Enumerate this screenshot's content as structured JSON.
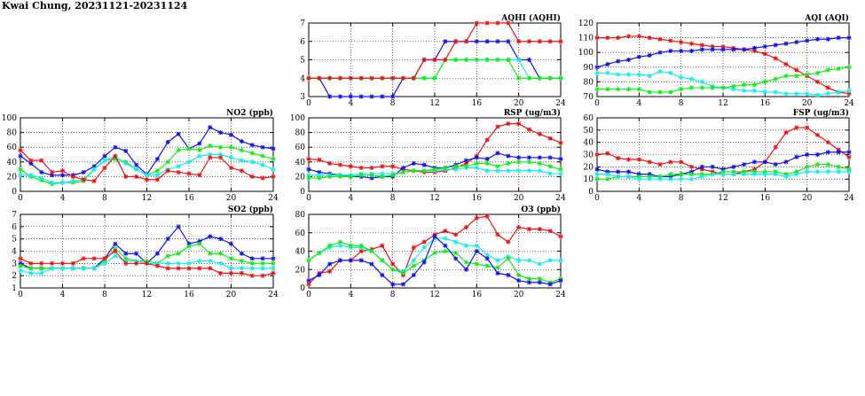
{
  "page": {
    "title": "Kwai Chung, 20231121-20231124"
  },
  "colors": {
    "red": "#ee1111",
    "blue": "#1111ee",
    "green": "#11ee11",
    "cyan": "#11eeee"
  },
  "chart_data": [
    {
      "id": "aqhi",
      "type": "line",
      "title": "AQHI (AQHI)",
      "x": [
        0,
        1,
        2,
        3,
        4,
        5,
        6,
        7,
        8,
        9,
        10,
        11,
        12,
        13,
        14,
        15,
        16,
        17,
        18,
        19,
        20,
        21,
        22,
        23,
        24
      ],
      "xlim": [
        0,
        24
      ],
      "xticks": [
        0,
        4,
        8,
        12,
        16,
        20,
        24
      ],
      "ylim": [
        3,
        7
      ],
      "yticks": [
        3,
        4,
        5,
        6,
        7
      ],
      "grid": true,
      "series": [
        {
          "color": "blue",
          "values": [
            4,
            4,
            3,
            3,
            3,
            3,
            3,
            3,
            3,
            4,
            4,
            5,
            5,
            6,
            6,
            6,
            6,
            6,
            6,
            6,
            5,
            5,
            4,
            4,
            4
          ]
        },
        {
          "color": "cyan",
          "values": [
            4,
            4,
            4,
            4,
            4,
            4,
            4,
            4,
            4,
            4,
            4,
            4,
            4,
            5,
            5,
            5,
            5,
            5,
            5,
            5,
            5,
            4,
            4,
            4,
            4
          ]
        },
        {
          "color": "green",
          "values": [
            4,
            4,
            4,
            4,
            4,
            4,
            4,
            4,
            4,
            4,
            4,
            4,
            4,
            5,
            5,
            5,
            5,
            5,
            5,
            5,
            4,
            4,
            4,
            4,
            4
          ]
        },
        {
          "color": "red",
          "values": [
            4,
            4,
            4,
            4,
            4,
            4,
            4,
            4,
            4,
            4,
            4,
            5,
            5,
            5,
            6,
            6,
            7,
            7,
            7,
            7,
            6,
            6,
            6,
            6,
            6
          ]
        }
      ]
    },
    {
      "id": "aqi",
      "type": "line",
      "title": "AQI (AQI)",
      "x": [
        0,
        1,
        2,
        3,
        4,
        5,
        6,
        7,
        8,
        9,
        10,
        11,
        12,
        13,
        14,
        15,
        16,
        17,
        18,
        19,
        20,
        21,
        22,
        23,
        24
      ],
      "xlim": [
        0,
        24
      ],
      "xticks": [
        0,
        4,
        8,
        12,
        16,
        20,
        24
      ],
      "ylim": [
        70,
        120
      ],
      "yticks": [
        70,
        80,
        90,
        100,
        110,
        120
      ],
      "grid": true,
      "series": [
        {
          "color": "red",
          "values": [
            110,
            110,
            110,
            111,
            111,
            110,
            109,
            108,
            107,
            106,
            105,
            104,
            104,
            103,
            102,
            101,
            99,
            96,
            92,
            88,
            84,
            80,
            76,
            73,
            72
          ]
        },
        {
          "color": "blue",
          "values": [
            90,
            92,
            94,
            95,
            97,
            98,
            100,
            101,
            101,
            101,
            102,
            102,
            102,
            102,
            102,
            103,
            104,
            105,
            106,
            107,
            108,
            109,
            109,
            110,
            110
          ]
        },
        {
          "color": "cyan",
          "values": [
            86,
            86,
            85,
            85,
            85,
            84,
            87,
            86,
            83,
            82,
            80,
            77,
            76,
            75,
            74,
            74,
            73,
            73,
            72,
            72,
            72,
            71,
            72,
            73,
            74
          ]
        },
        {
          "color": "green",
          "values": [
            75,
            75,
            75,
            75,
            75,
            73,
            73,
            73,
            75,
            76,
            76,
            76,
            76,
            77,
            78,
            78,
            80,
            82,
            84,
            84,
            85,
            86,
            88,
            89,
            90
          ]
        }
      ]
    },
    {
      "id": "no2",
      "type": "line",
      "title": "NO2 (ppb)",
      "x": [
        0,
        1,
        2,
        3,
        4,
        5,
        6,
        7,
        8,
        9,
        10,
        11,
        12,
        13,
        14,
        15,
        16,
        17,
        18,
        19,
        20,
        21,
        22,
        23,
        24
      ],
      "xlim": [
        0,
        24
      ],
      "xticks": [
        0,
        4,
        8,
        12,
        16,
        20,
        24
      ],
      "ylim": [
        0,
        100
      ],
      "yticks": [
        0,
        20,
        40,
        60,
        80,
        100
      ],
      "grid": true,
      "series": [
        {
          "color": "blue",
          "values": [
            48,
            38,
            26,
            22,
            22,
            22,
            26,
            34,
            48,
            60,
            55,
            36,
            23,
            44,
            67,
            78,
            58,
            65,
            87,
            80,
            77,
            68,
            63,
            60,
            58
          ]
        },
        {
          "color": "green",
          "values": [
            30,
            20,
            15,
            10,
            12,
            12,
            14,
            30,
            42,
            44,
            40,
            30,
            22,
            28,
            40,
            56,
            58,
            56,
            62,
            60,
            60,
            56,
            52,
            48,
            44
          ]
        },
        {
          "color": "cyan",
          "values": [
            22,
            22,
            18,
            12,
            12,
            14,
            16,
            30,
            42,
            48,
            38,
            30,
            22,
            22,
            30,
            34,
            40,
            48,
            50,
            50,
            46,
            42,
            40,
            36,
            30
          ]
        },
        {
          "color": "red",
          "values": [
            56,
            42,
            42,
            26,
            28,
            20,
            16,
            14,
            32,
            48,
            20,
            20,
            16,
            16,
            28,
            26,
            24,
            22,
            46,
            46,
            32,
            28,
            20,
            18,
            20
          ]
        }
      ]
    },
    {
      "id": "rsp",
      "type": "line",
      "title": "RSP (ug/m3)",
      "x": [
        0,
        1,
        2,
        3,
        4,
        5,
        6,
        7,
        8,
        9,
        10,
        11,
        12,
        13,
        14,
        15,
        16,
        17,
        18,
        19,
        20,
        21,
        22,
        23,
        24
      ],
      "xlim": [
        0,
        24
      ],
      "xticks": [
        0,
        4,
        8,
        12,
        16,
        20,
        24
      ],
      "ylim": [
        0,
        100
      ],
      "yticks": [
        0,
        20,
        40,
        60,
        80,
        100
      ],
      "grid": true,
      "series": [
        {
          "color": "red",
          "values": [
            44,
            43,
            38,
            36,
            34,
            32,
            32,
            34,
            34,
            30,
            28,
            26,
            26,
            28,
            32,
            38,
            48,
            70,
            88,
            92,
            92,
            84,
            78,
            72,
            66
          ]
        },
        {
          "color": "blue",
          "values": [
            30,
            26,
            24,
            22,
            20,
            20,
            18,
            20,
            20,
            32,
            38,
            36,
            32,
            32,
            36,
            42,
            46,
            44,
            52,
            48,
            46,
            46,
            46,
            46,
            44
          ]
        },
        {
          "color": "cyan",
          "values": [
            22,
            22,
            22,
            22,
            22,
            24,
            24,
            24,
            24,
            26,
            28,
            28,
            28,
            30,
            30,
            32,
            32,
            28,
            28,
            28,
            28,
            28,
            28,
            24,
            24
          ]
        },
        {
          "color": "green",
          "values": [
            18,
            18,
            20,
            20,
            20,
            22,
            22,
            20,
            22,
            26,
            28,
            28,
            30,
            32,
            34,
            34,
            38,
            38,
            34,
            38,
            40,
            40,
            38,
            34,
            30
          ]
        }
      ]
    },
    {
      "id": "fsp",
      "type": "line",
      "title": "FSP (ug/m3)",
      "x": [
        0,
        1,
        2,
        3,
        4,
        5,
        6,
        7,
        8,
        9,
        10,
        11,
        12,
        13,
        14,
        15,
        16,
        17,
        18,
        19,
        20,
        21,
        22,
        23,
        24
      ],
      "xlim": [
        0,
        24
      ],
      "xticks": [
        0,
        4,
        8,
        12,
        16,
        20,
        24
      ],
      "ylim": [
        0,
        60
      ],
      "yticks": [
        0,
        10,
        20,
        30,
        40,
        50,
        60
      ],
      "grid": true,
      "series": [
        {
          "color": "red",
          "values": [
            30,
            31,
            27,
            26,
            26,
            24,
            22,
            24,
            24,
            20,
            18,
            16,
            14,
            14,
            16,
            18,
            24,
            36,
            48,
            52,
            52,
            46,
            40,
            34,
            28
          ]
        },
        {
          "color": "blue",
          "values": [
            18,
            16,
            16,
            16,
            14,
            14,
            12,
            12,
            14,
            16,
            20,
            20,
            18,
            20,
            22,
            24,
            24,
            22,
            24,
            28,
            30,
            30,
            32,
            32,
            32
          ]
        },
        {
          "color": "green",
          "values": [
            10,
            10,
            12,
            12,
            12,
            12,
            12,
            14,
            14,
            14,
            14,
            14,
            16,
            16,
            16,
            16,
            16,
            16,
            14,
            16,
            20,
            22,
            22,
            20,
            18
          ]
        },
        {
          "color": "cyan",
          "values": [
            14,
            14,
            12,
            12,
            10,
            10,
            10,
            10,
            10,
            10,
            12,
            14,
            14,
            14,
            14,
            14,
            14,
            14,
            12,
            14,
            16,
            16,
            16,
            16,
            16
          ]
        }
      ]
    },
    {
      "id": "so2",
      "type": "line",
      "title": "SO2 (ppb)",
      "x": [
        0,
        1,
        2,
        3,
        4,
        5,
        6,
        7,
        8,
        9,
        10,
        11,
        12,
        13,
        14,
        15,
        16,
        17,
        18,
        19,
        20,
        21,
        22,
        23,
        24
      ],
      "xlim": [
        0,
        24
      ],
      "xticks": [
        0,
        4,
        8,
        12,
        16,
        20,
        24
      ],
      "ylim": [
        1,
        7
      ],
      "yticks": [
        1,
        2,
        3,
        4,
        5,
        6,
        7
      ],
      "grid": true,
      "series": [
        {
          "color": "blue",
          "values": [
            3.0,
            2.6,
            2.6,
            2.6,
            2.6,
            2.6,
            2.6,
            2.6,
            3.4,
            4.6,
            3.8,
            3.8,
            3.0,
            3.8,
            5.0,
            6.0,
            4.6,
            4.8,
            5.2,
            5.0,
            4.6,
            3.8,
            3.4,
            3.4,
            3.4
          ]
        },
        {
          "color": "green",
          "values": [
            2.8,
            2.6,
            2.6,
            2.6,
            2.6,
            2.6,
            2.6,
            2.6,
            3.2,
            4.2,
            3.4,
            3.2,
            3.2,
            3.0,
            3.6,
            3.8,
            4.4,
            4.6,
            3.8,
            3.8,
            3.4,
            3.2,
            3.0,
            3.0,
            3.0
          ]
        },
        {
          "color": "cyan",
          "values": [
            2.4,
            2.2,
            2.2,
            2.6,
            2.6,
            2.6,
            2.6,
            2.6,
            3.0,
            3.6,
            3.2,
            3.2,
            3.0,
            3.0,
            3.0,
            3.0,
            3.0,
            3.2,
            3.2,
            3.0,
            2.6,
            2.6,
            2.6,
            2.6,
            2.6
          ]
        },
        {
          "color": "red",
          "values": [
            3.4,
            3.0,
            3.0,
            3.0,
            3.0,
            3.0,
            3.4,
            3.4,
            3.4,
            4.0,
            3.0,
            3.0,
            3.0,
            2.8,
            2.6,
            2.6,
            2.6,
            2.6,
            2.6,
            2.2,
            2.2,
            2.2,
            2.0,
            2.0,
            2.2
          ]
        }
      ]
    },
    {
      "id": "o3",
      "type": "line",
      "title": "O3 (ppb)",
      "x": [
        0,
        1,
        2,
        3,
        4,
        5,
        6,
        7,
        8,
        9,
        10,
        11,
        12,
        13,
        14,
        15,
        16,
        17,
        18,
        19,
        20,
        21,
        22,
        23,
        24
      ],
      "xlim": [
        0,
        24
      ],
      "xticks": [
        0,
        4,
        8,
        12,
        16,
        20,
        24
      ],
      "ylim": [
        0,
        80
      ],
      "yticks": [
        0,
        20,
        40,
        60,
        80
      ],
      "grid": true,
      "series": [
        {
          "color": "red",
          "values": [
            4,
            16,
            18,
            30,
            30,
            40,
            42,
            46,
            26,
            14,
            44,
            50,
            58,
            62,
            58,
            66,
            76,
            78,
            58,
            50,
            66,
            64,
            64,
            62,
            56
          ]
        },
        {
          "color": "cyan",
          "values": [
            30,
            38,
            44,
            46,
            44,
            44,
            40,
            30,
            20,
            18,
            30,
            44,
            54,
            54,
            50,
            46,
            46,
            36,
            30,
            34,
            30,
            30,
            26,
            30,
            30
          ]
        },
        {
          "color": "green",
          "values": [
            30,
            38,
            46,
            50,
            46,
            46,
            40,
            30,
            20,
            16,
            24,
            30,
            38,
            40,
            38,
            28,
            26,
            24,
            22,
            32,
            14,
            10,
            10,
            6,
            10
          ]
        },
        {
          "color": "blue",
          "values": [
            8,
            14,
            26,
            30,
            30,
            30,
            26,
            14,
            4,
            4,
            14,
            28,
            56,
            46,
            32,
            20,
            40,
            32,
            16,
            14,
            8,
            6,
            6,
            4,
            8
          ]
        }
      ]
    }
  ]
}
